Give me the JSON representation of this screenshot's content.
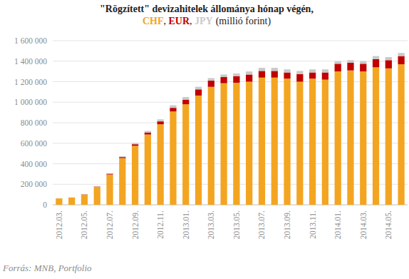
{
  "chart_data": {
    "type": "bar",
    "stacked": true,
    "grid": true,
    "title": "\"Rögzített\" devizahitelek állománya hónap végén,",
    "subtitle": "(millió forint)",
    "source": "Forrás: MNB, Portfolio",
    "categories": [
      "2012.03.",
      null,
      "2012.05.",
      null,
      "2012.07.",
      null,
      "2012.09.",
      null,
      "2012.11.",
      null,
      "2013.01.",
      null,
      "2013.03.",
      null,
      "2013.05.",
      null,
      "2013.07.",
      null,
      "2013.09.",
      null,
      "2013.11.",
      null,
      "2014.01.",
      null,
      "2014.03.",
      null,
      "2014.05.",
      null
    ],
    "series": [
      {
        "name": "CHF",
        "color": "#f3a521",
        "values": [
          62000,
          70000,
          100000,
          175000,
          295000,
          455000,
          575000,
          685000,
          785000,
          910000,
          980000,
          1065000,
          1150000,
          1185000,
          1190000,
          1200000,
          1240000,
          1240000,
          1230000,
          1200000,
          1230000,
          1220000,
          1300000,
          1310000,
          1300000,
          1340000,
          1330000,
          1370000
        ]
      },
      {
        "name": "EUR",
        "color": "#c00000",
        "values": [
          0,
          0,
          2000,
          3000,
          8000,
          10000,
          15000,
          20000,
          28000,
          35000,
          45000,
          60000,
          60000,
          60000,
          65000,
          70000,
          65000,
          65000,
          60000,
          75000,
          60000,
          70000,
          75000,
          75000,
          75000,
          80000,
          80000,
          80000
        ]
      },
      {
        "name": "JPY",
        "color": "#c9c9c9",
        "values": [
          2000,
          2000,
          3000,
          4000,
          5000,
          8000,
          12000,
          15000,
          20000,
          25000,
          25000,
          25000,
          25000,
          25000,
          25000,
          30000,
          30000,
          30000,
          30000,
          30000,
          30000,
          30000,
          25000,
          25000,
          25000,
          30000,
          30000,
          30000
        ]
      }
    ],
    "ylim": [
      0,
      1600000
    ],
    "yticks": [
      0,
      {
        "value": 200000,
        "label": "200 000"
      },
      {
        "value": 400000,
        "label": "400 000"
      },
      {
        "value": 600000,
        "label": "600 000"
      },
      {
        "value": 800000,
        "label": "800 000"
      },
      {
        "value": 1000000,
        "label": "1 000 000"
      },
      {
        "value": 1200000,
        "label": "1 200 000"
      },
      {
        "value": 1400000,
        "label": "1 400 000"
      },
      {
        "value": 1600000,
        "label": "1 600 000"
      }
    ]
  }
}
